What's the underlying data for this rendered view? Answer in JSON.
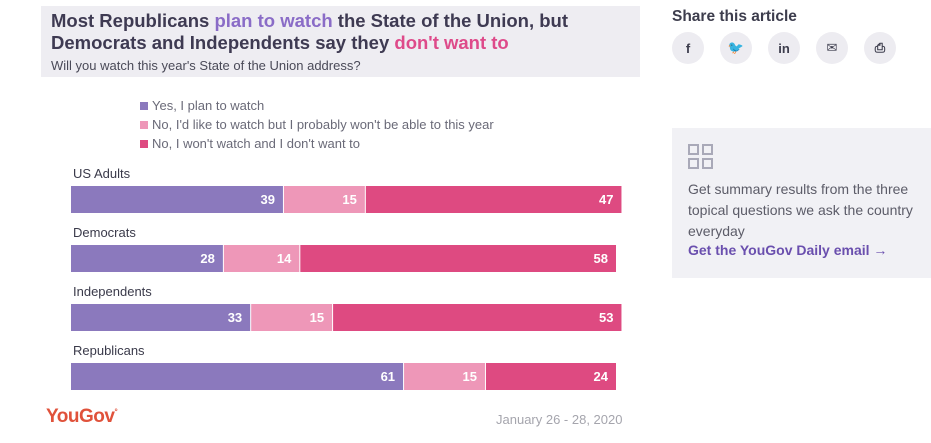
{
  "chart": {
    "title_part1": "Most Republicans ",
    "title_accent1": "plan to watch",
    "title_part2": " the State of the Union, but Democrats and Independents say they ",
    "title_accent2": "don't want to",
    "subtitle": "Will you watch this year's State of the Union address?",
    "logo": "YouGov",
    "date": "January 26 - 28, 2020"
  },
  "chart_data": {
    "type": "bar",
    "orientation": "horizontal",
    "stacked": true,
    "categories": [
      "US Adults",
      "Democrats",
      "Independents",
      "Republicans"
    ],
    "series": [
      {
        "name": "Yes, I plan to watch",
        "color": "#8b79bd",
        "values": [
          39,
          28,
          33,
          61
        ]
      },
      {
        "name": "No, I'd like to watch but I probably won't be able to this year",
        "color": "#ee97b8",
        "values": [
          15,
          14,
          15,
          15
        ]
      },
      {
        "name": "No, I won't watch and I don't want to",
        "color": "#de4a81",
        "values": [
          47,
          58,
          53,
          24
        ]
      }
    ],
    "legend_position": "top"
  },
  "share": {
    "title": "Share this article",
    "buttons": [
      {
        "icon": "facebook-icon",
        "glyph": "f"
      },
      {
        "icon": "twitter-icon",
        "glyph": "🐦"
      },
      {
        "icon": "linkedin-icon",
        "glyph": "in"
      },
      {
        "icon": "email-icon",
        "glyph": "✉"
      },
      {
        "icon": "print-icon",
        "glyph": "⎙"
      }
    ]
  },
  "promo": {
    "text": "Get summary results from the three topical questions we ask the country everyday",
    "link": "Get the YouGov Daily email →"
  }
}
